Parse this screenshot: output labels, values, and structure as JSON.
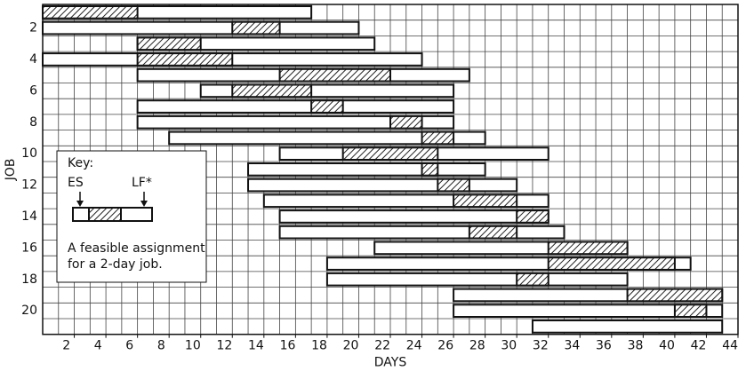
{
  "chart_data": {
    "type": "gantt",
    "x_label": "DAYS",
    "y_label": "JOB",
    "xlim": [
      0,
      44
    ],
    "xticks": [
      2,
      4,
      6,
      8,
      10,
      12,
      14,
      16,
      18,
      20,
      22,
      24,
      26,
      28,
      30,
      32,
      34,
      36,
      38,
      40,
      42,
      44
    ],
    "categories": [
      null,
      2,
      null,
      4,
      null,
      6,
      null,
      8,
      null,
      10,
      null,
      12,
      null,
      14,
      null,
      16,
      null,
      18,
      null,
      20,
      null
    ],
    "tasks": [
      {
        "start": 0,
        "end": 17,
        "scheduled": [
          0,
          6
        ]
      },
      {
        "start": 0,
        "end": 20,
        "scheduled": [
          12,
          15
        ]
      },
      {
        "start": 6,
        "end": 21,
        "scheduled": [
          6,
          10
        ]
      },
      {
        "start": 0,
        "end": 24,
        "scheduled": [
          6,
          12
        ]
      },
      {
        "start": 6,
        "end": 27,
        "scheduled": [
          15,
          22
        ]
      },
      {
        "start": 10,
        "end": 26,
        "scheduled": [
          12,
          17
        ]
      },
      {
        "start": 6,
        "end": 26,
        "scheduled": [
          17,
          19
        ]
      },
      {
        "start": 6,
        "end": 26,
        "scheduled": [
          22,
          24
        ]
      },
      {
        "start": 8,
        "end": 28,
        "scheduled": [
          24,
          26
        ]
      },
      {
        "start": 15,
        "end": 32,
        "scheduled": [
          19,
          25
        ]
      },
      {
        "start": 13,
        "end": 28,
        "scheduled": [
          24,
          25
        ]
      },
      {
        "start": 13,
        "end": 30,
        "scheduled": [
          25,
          27
        ]
      },
      {
        "start": 14,
        "end": 32,
        "scheduled": [
          26,
          30
        ]
      },
      {
        "start": 15,
        "end": 32,
        "scheduled": [
          30,
          32
        ]
      },
      {
        "start": 15,
        "end": 33,
        "scheduled": [
          27,
          30
        ]
      },
      {
        "start": 21,
        "end": 37,
        "scheduled": [
          32,
          37
        ]
      },
      {
        "start": 18,
        "end": 41,
        "scheduled": [
          32,
          40
        ]
      },
      {
        "start": 18,
        "end": 37,
        "scheduled": [
          30,
          32
        ]
      },
      {
        "start": 26,
        "end": 43,
        "scheduled": [
          37,
          43
        ]
      },
      {
        "start": 26,
        "end": 43,
        "scheduled": [
          40,
          42
        ]
      },
      {
        "start": 31,
        "end": 43,
        "scheduled": null
      }
    ],
    "key": {
      "title": "Key:",
      "es_label": "ES",
      "lf_label": "LF*",
      "caption": [
        "A feasible assignment",
        "for a 2-day job."
      ]
    },
    "hatch_color": "#222"
  }
}
